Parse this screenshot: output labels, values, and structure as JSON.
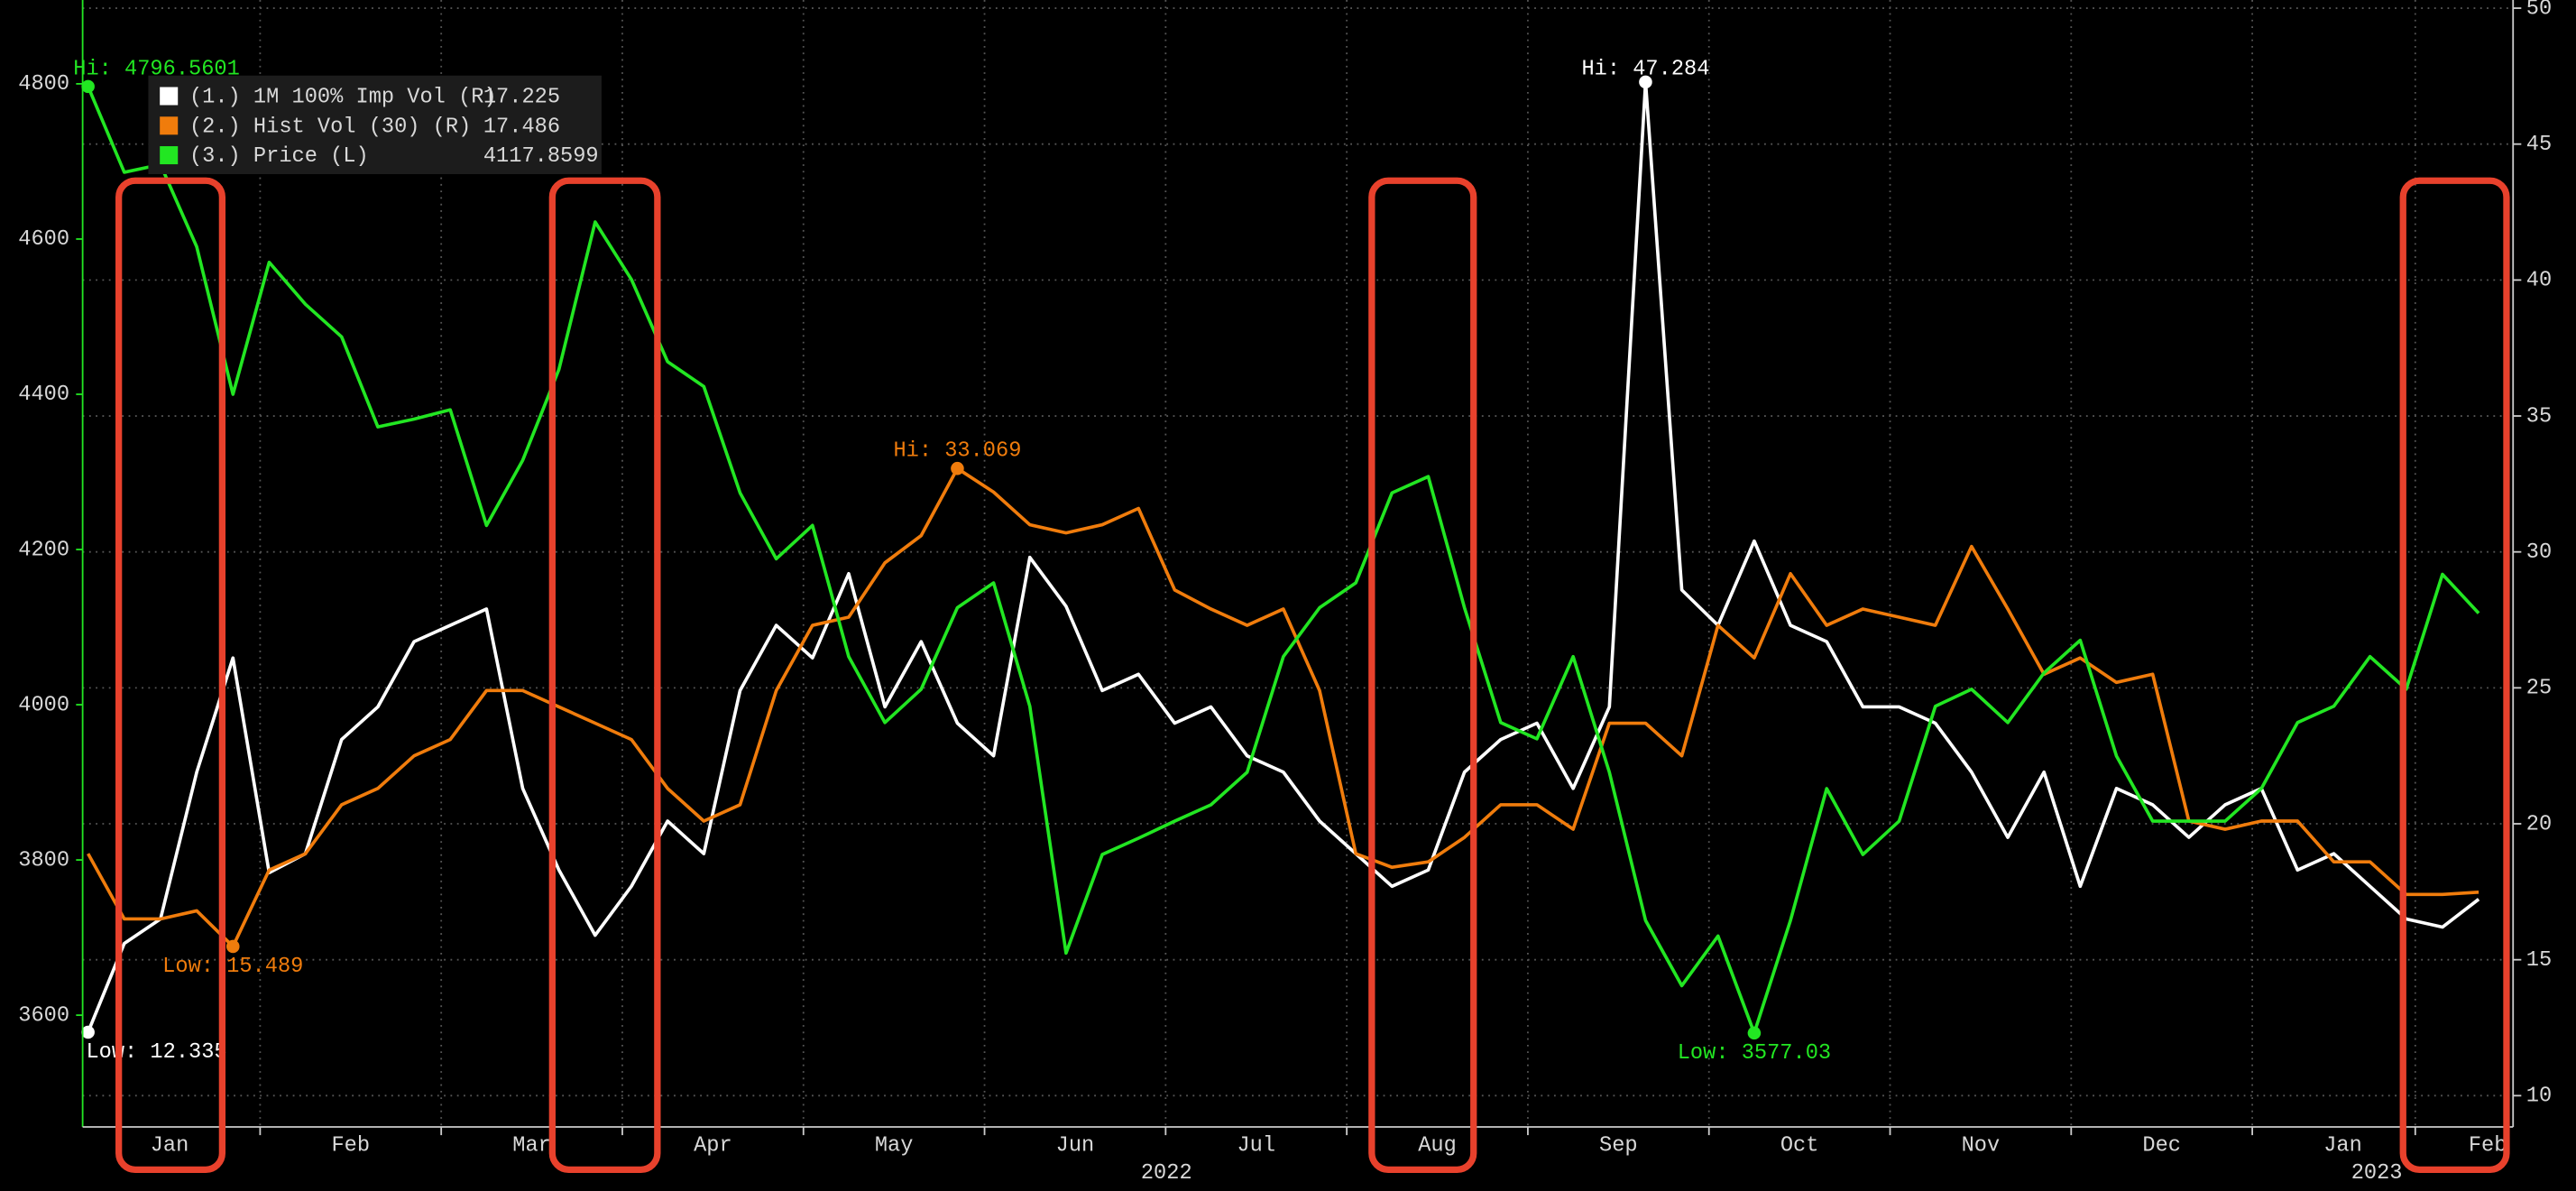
{
  "chart_data": {
    "type": "line",
    "x": [
      0.05,
      0.25,
      0.45,
      0.65,
      0.85,
      1.05,
      1.25,
      1.45,
      1.65,
      1.85,
      2.05,
      2.25,
      2.45,
      2.65,
      2.85,
      3.05,
      3.25,
      3.45,
      3.65,
      3.85,
      4.05,
      4.25,
      4.45,
      4.65,
      4.85,
      5.05,
      5.25,
      5.45,
      5.65,
      5.85,
      6.05,
      6.25,
      6.45,
      6.65,
      6.85,
      7.05,
      7.25,
      7.45,
      7.65,
      7.85,
      8.05,
      8.25,
      8.45,
      8.65,
      8.85,
      9.05,
      9.25,
      9.45,
      9.65,
      9.85,
      10.05,
      10.25,
      10.45,
      10.65,
      10.85,
      11.05,
      11.25,
      11.45,
      11.65,
      11.85,
      12.05,
      12.25,
      12.45,
      12.65,
      12.85,
      13.05,
      13.25
    ],
    "series": [
      {
        "name": "(1.) 1M 100% Imp Vol (R)",
        "color": "#ffffff",
        "axis": "y2",
        "hi_label": "Hi: 47.284",
        "low_label": "Low: 12.335",
        "values": [
          12.335,
          15.6,
          16.5,
          21.9,
          26.1,
          18.2,
          18.9,
          23.1,
          24.3,
          26.7,
          27.3,
          27.9,
          21.3,
          18.3,
          15.9,
          17.7,
          20.1,
          18.9,
          24.9,
          27.3,
          26.1,
          29.2,
          24.3,
          26.7,
          23.7,
          22.5,
          29.8,
          28.0,
          24.9,
          25.5,
          23.7,
          24.3,
          22.5,
          21.9,
          20.1,
          18.9,
          17.7,
          18.3,
          21.9,
          23.1,
          23.7,
          21.3,
          24.3,
          47.284,
          28.6,
          27.3,
          30.4,
          27.3,
          26.7,
          24.3,
          24.3,
          23.7,
          21.9,
          19.5,
          21.9,
          17.7,
          21.3,
          20.7,
          19.5,
          20.7,
          21.3,
          18.3,
          18.9,
          17.7,
          16.5,
          16.2,
          17.225
        ]
      },
      {
        "name": "(2.) Hist Vol (30) (R)",
        "color": "#f07c0c",
        "axis": "y2",
        "hi_label": "Hi: 33.069",
        "low_label": "Low: 15.489",
        "values": [
          18.9,
          16.5,
          16.5,
          16.8,
          15.489,
          18.3,
          18.9,
          20.7,
          21.3,
          22.5,
          23.1,
          24.9,
          24.9,
          24.3,
          23.7,
          23.1,
          21.3,
          20.1,
          20.7,
          24.9,
          27.3,
          27.6,
          29.6,
          30.6,
          33.069,
          32.2,
          31.0,
          30.7,
          31.0,
          31.6,
          28.6,
          27.9,
          27.3,
          27.9,
          24.9,
          18.9,
          18.4,
          18.6,
          19.5,
          20.7,
          20.7,
          19.8,
          23.7,
          23.7,
          22.5,
          27.3,
          26.1,
          29.2,
          27.3,
          27.9,
          27.6,
          27.3,
          30.2,
          27.9,
          25.5,
          26.1,
          25.2,
          25.5,
          20.1,
          19.8,
          20.1,
          20.1,
          18.6,
          18.6,
          17.4,
          17.4,
          17.486
        ]
      },
      {
        "name": "(3.) Price (L)",
        "color": "#22e622",
        "axis": "y",
        "hi_label": "Hi: 4796.5601",
        "low_label": "Low: 3577.03",
        "values": [
          4796.5601,
          4686,
          4696,
          4590,
          4400,
          4570,
          4516,
          4474,
          4358,
          4368,
          4380,
          4231,
          4315,
          4432,
          4622,
          4548,
          4442,
          4410,
          4273,
          4188,
          4231,
          4062,
          3977,
          4020,
          4125,
          4157,
          3998,
          3680,
          3807,
          3828,
          3850,
          3871,
          3913,
          4062,
          4125,
          4157,
          4273,
          4294,
          4125,
          3977,
          3956,
          4062,
          3913,
          3722,
          3638,
          3702,
          3577.03,
          3722,
          3892,
          3807,
          3850,
          3998,
          4020,
          3977,
          4041,
          4083,
          3934,
          3850,
          3850,
          3850,
          3892,
          3977,
          3998,
          4062,
          4020,
          4168,
          4117.8599
        ]
      }
    ],
    "xlim": [
      0.02,
      13.44
    ],
    "xticks": [
      {
        "value": 0.5,
        "label": "Jan"
      },
      {
        "value": 1.5,
        "label": "Feb"
      },
      {
        "value": 2.5,
        "label": "Mar"
      },
      {
        "value": 3.5,
        "label": "Apr"
      },
      {
        "value": 4.5,
        "label": "May"
      },
      {
        "value": 5.5,
        "label": "Jun"
      },
      {
        "value": 6.5,
        "label": "Jul"
      },
      {
        "value": 7.5,
        "label": "Aug"
      },
      {
        "value": 8.5,
        "label": "Sep"
      },
      {
        "value": 9.5,
        "label": "Oct"
      },
      {
        "value": 10.5,
        "label": "Nov"
      },
      {
        "value": 11.5,
        "label": "Dec"
      },
      {
        "value": 12.5,
        "label": "Jan"
      },
      {
        "value": 13.3,
        "label": "Feb"
      }
    ],
    "x_group_labels": [
      "2022",
      "2023"
    ],
    "ylim": [
      3456,
      4908
    ],
    "yticks": [
      3600,
      3800,
      4000,
      4200,
      4400,
      4600,
      4800
    ],
    "y2lim": [
      8.85,
      50.3
    ],
    "y2ticks": [
      10,
      15,
      20,
      25,
      30,
      35,
      40,
      45,
      50
    ],
    "grid": true
  }
}
